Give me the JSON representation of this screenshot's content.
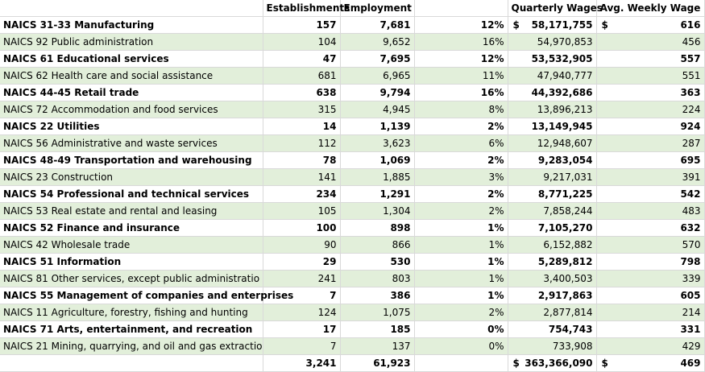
{
  "headers": {
    "col1": "",
    "col2": "Establishments",
    "col3": "Employment",
    "col4": "",
    "col5": "Quarterly Wages",
    "col6": "Avg. Weekly Wage"
  },
  "rows": [
    {
      "industry": "NAICS 31-33 Manufacturing",
      "establishments": "157",
      "employment": "7,681",
      "pct": "12%",
      "wage_dollar": "$",
      "wages": "58,171,755",
      "weekly_dollar": "$",
      "weekly": "616"
    },
    {
      "industry": "NAICS 92 Public administration",
      "establishments": "104",
      "employment": "9,652",
      "pct": "16%",
      "wage_dollar": "",
      "wages": "54,970,853",
      "weekly_dollar": "",
      "weekly": "456"
    },
    {
      "industry": "NAICS 61 Educational services",
      "establishments": "47",
      "employment": "7,695",
      "pct": "12%",
      "wage_dollar": "",
      "wages": "53,532,905",
      "weekly_dollar": "",
      "weekly": "557"
    },
    {
      "industry": "NAICS 62 Health care and social assistance",
      "establishments": "681",
      "employment": "6,965",
      "pct": "11%",
      "wage_dollar": "",
      "wages": "47,940,777",
      "weekly_dollar": "",
      "weekly": "551"
    },
    {
      "industry": "NAICS 44-45 Retail trade",
      "establishments": "638",
      "employment": "9,794",
      "pct": "16%",
      "wage_dollar": "",
      "wages": "44,392,686",
      "weekly_dollar": "",
      "weekly": "363"
    },
    {
      "industry": "NAICS 72 Accommodation and food services",
      "establishments": "315",
      "employment": "4,945",
      "pct": "8%",
      "wage_dollar": "",
      "wages": "13,896,213",
      "weekly_dollar": "",
      "weekly": "224"
    },
    {
      "industry": "NAICS 22 Utilities",
      "establishments": "14",
      "employment": "1,139",
      "pct": "2%",
      "wage_dollar": "",
      "wages": "13,149,945",
      "weekly_dollar": "",
      "weekly": "924"
    },
    {
      "industry": "NAICS 56 Administrative and waste services",
      "establishments": "112",
      "employment": "3,623",
      "pct": "6%",
      "wage_dollar": "",
      "wages": "12,948,607",
      "weekly_dollar": "",
      "weekly": "287"
    },
    {
      "industry": "NAICS 48-49 Transportation and warehousing",
      "establishments": "78",
      "employment": "1,069",
      "pct": "2%",
      "wage_dollar": "",
      "wages": "9,283,054",
      "weekly_dollar": "",
      "weekly": "695"
    },
    {
      "industry": "NAICS 23 Construction",
      "establishments": "141",
      "employment": "1,885",
      "pct": "3%",
      "wage_dollar": "",
      "wages": "9,217,031",
      "weekly_dollar": "",
      "weekly": "391"
    },
    {
      "industry": "NAICS 54 Professional and technical services",
      "establishments": "234",
      "employment": "1,291",
      "pct": "2%",
      "wage_dollar": "",
      "wages": "8,771,225",
      "weekly_dollar": "",
      "weekly": "542"
    },
    {
      "industry": "NAICS 53 Real estate and rental and leasing",
      "establishments": "105",
      "employment": "1,304",
      "pct": "2%",
      "wage_dollar": "",
      "wages": "7,858,244",
      "weekly_dollar": "",
      "weekly": "483"
    },
    {
      "industry": "NAICS 52 Finance and insurance",
      "establishments": "100",
      "employment": "898",
      "pct": "1%",
      "wage_dollar": "",
      "wages": "7,105,270",
      "weekly_dollar": "",
      "weekly": "632"
    },
    {
      "industry": "NAICS 42 Wholesale trade",
      "establishments": "90",
      "employment": "866",
      "pct": "1%",
      "wage_dollar": "",
      "wages": "6,152,882",
      "weekly_dollar": "",
      "weekly": "570"
    },
    {
      "industry": "NAICS 51 Information",
      "establishments": "29",
      "employment": "530",
      "pct": "1%",
      "wage_dollar": "",
      "wages": "5,289,812",
      "weekly_dollar": "",
      "weekly": "798"
    },
    {
      "industry": "NAICS 81 Other services, except public administratio",
      "establishments": "241",
      "employment": "803",
      "pct": "1%",
      "wage_dollar": "",
      "wages": "3,400,503",
      "weekly_dollar": "",
      "weekly": "339"
    },
    {
      "industry": "NAICS 55 Management of companies and enterprises",
      "establishments": "7",
      "employment": "386",
      "pct": "1%",
      "wage_dollar": "",
      "wages": "2,917,863",
      "weekly_dollar": "",
      "weekly": "605"
    },
    {
      "industry": "NAICS 11 Agriculture, forestry, fishing and hunting",
      "establishments": "124",
      "employment": "1,075",
      "pct": "2%",
      "wage_dollar": "",
      "wages": "2,877,814",
      "weekly_dollar": "",
      "weekly": "214"
    },
    {
      "industry": "NAICS 71 Arts, entertainment, and recreation",
      "establishments": "17",
      "employment": "185",
      "pct": "0%",
      "wage_dollar": "",
      "wages": "754,743",
      "weekly_dollar": "",
      "weekly": "331"
    },
    {
      "industry": "NAICS 21 Mining, quarrying, and oil and gas extractio",
      "establishments": "7",
      "employment": "137",
      "pct": "0%",
      "wage_dollar": "",
      "wages": "733,908",
      "weekly_dollar": "",
      "weekly": "429"
    }
  ],
  "total": {
    "industry": "",
    "establishments": "3,241",
    "employment": "61,923",
    "pct": "",
    "wage_dollar": "$",
    "wages": "363,366,090",
    "weekly_dollar": "$",
    "weekly": "469"
  },
  "colors": {
    "band": "#e2efda",
    "grid": "#d9d9d9"
  }
}
